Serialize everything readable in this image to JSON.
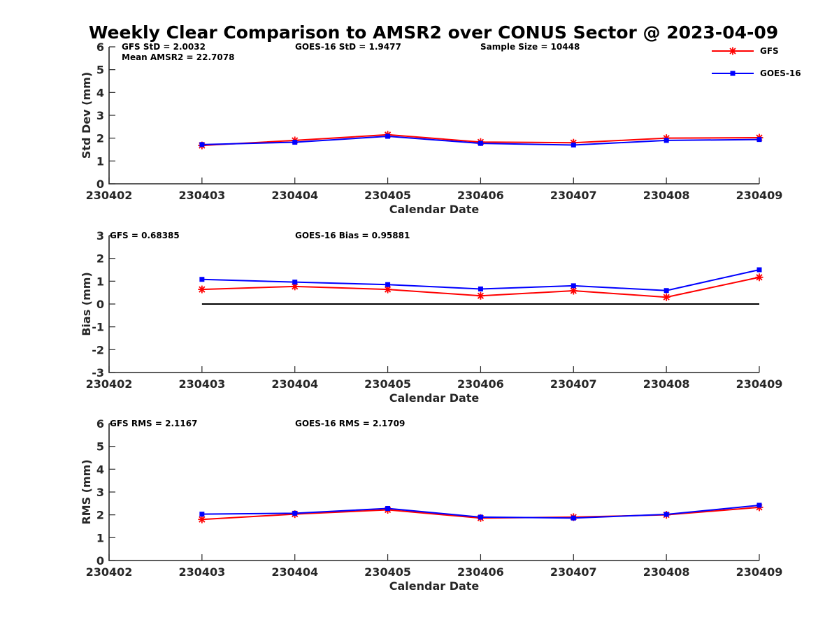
{
  "title": "Weekly Clear Comparison to AMSR2 over CONUS Sector @ 2023-04-09",
  "legend": {
    "position": "top-right",
    "items": [
      {
        "label": "GFS",
        "color": "#ff0000",
        "marker": "asterisk"
      },
      {
        "label": "GOES-16",
        "color": "#0000ff",
        "marker": "square"
      }
    ]
  },
  "chart_data": [
    {
      "type": "line",
      "ylabel": "Std Dev (mm)",
      "xlabel": "Calendar Date",
      "ylim": [
        0,
        6
      ],
      "yticks": [
        "0",
        "1",
        "2",
        "3",
        "4",
        "5",
        "6"
      ],
      "x": [
        "230402",
        "230403",
        "230404",
        "230405",
        "230406",
        "230407",
        "230408",
        "230409"
      ],
      "grid": false,
      "annotations": [
        {
          "text": "GFS StD = 2.0032",
          "row": 1,
          "col": 1
        },
        {
          "text": "GOES-16 StD = 1.9477",
          "row": 1,
          "col": 2
        },
        {
          "text": "Sample Size = 10448",
          "row": 1,
          "col": 3
        },
        {
          "text": "Mean AMSR2 = 22.7078",
          "row": 2,
          "col": 1
        }
      ],
      "series": [
        {
          "name": "GFS",
          "color": "#ff0000",
          "x": [
            "230403",
            "230404",
            "230405",
            "230406",
            "230407",
            "230408",
            "230409"
          ],
          "values": [
            1.68,
            1.9,
            2.15,
            1.83,
            1.8,
            2.0,
            2.02
          ]
        },
        {
          "name": "GOES-16",
          "color": "#0000ff",
          "x": [
            "230403",
            "230404",
            "230405",
            "230406",
            "230407",
            "230408",
            "230409"
          ],
          "values": [
            1.72,
            1.82,
            2.08,
            1.77,
            1.7,
            1.9,
            1.94
          ]
        }
      ],
      "reference_line": null
    },
    {
      "type": "line",
      "ylabel": "Bias (mm)",
      "xlabel": "Calendar Date",
      "ylim": [
        -3,
        3
      ],
      "yticks": [
        "-3",
        "-2",
        "-1",
        "0",
        "1",
        "2",
        "3"
      ],
      "x": [
        "230402",
        "230403",
        "230404",
        "230405",
        "230406",
        "230407",
        "230408",
        "230409"
      ],
      "grid": false,
      "annotations": [
        {
          "text": "GFS = 0.68385",
          "row": 1,
          "col": 0
        },
        {
          "text": "GOES-16 Bias  = 0.95881",
          "row": 1,
          "col": 2
        }
      ],
      "series": [
        {
          "name": "GFS",
          "color": "#ff0000",
          "x": [
            "230403",
            "230404",
            "230405",
            "230406",
            "230407",
            "230408",
            "230409"
          ],
          "values": [
            0.64,
            0.77,
            0.64,
            0.36,
            0.58,
            0.3,
            1.17
          ]
        },
        {
          "name": "GOES-16",
          "color": "#0000ff",
          "x": [
            "230403",
            "230404",
            "230405",
            "230406",
            "230407",
            "230408",
            "230409"
          ],
          "values": [
            1.08,
            0.96,
            0.85,
            0.66,
            0.8,
            0.59,
            1.5
          ]
        }
      ],
      "reference_line": {
        "y": 0,
        "from": "230403",
        "to": "230409",
        "color": "#000000"
      }
    },
    {
      "type": "line",
      "ylabel": "RMS (mm)",
      "xlabel": "Calendar Date",
      "ylim": [
        0,
        6
      ],
      "yticks": [
        "0",
        "1",
        "2",
        "3",
        "4",
        "5",
        "6"
      ],
      "x": [
        "230402",
        "230403",
        "230404",
        "230405",
        "230406",
        "230407",
        "230408",
        "230409"
      ],
      "grid": false,
      "annotations": [
        {
          "text": "GFS RMS = 2.1167",
          "row": 1,
          "col": 0
        },
        {
          "text": "GOES-16 RMS = 2.1709",
          "row": 1,
          "col": 2
        }
      ],
      "series": [
        {
          "name": "GFS",
          "color": "#ff0000",
          "x": [
            "230403",
            "230404",
            "230405",
            "230406",
            "230407",
            "230408",
            "230409"
          ],
          "values": [
            1.8,
            2.03,
            2.22,
            1.86,
            1.9,
            2.0,
            2.33
          ]
        },
        {
          "name": "GOES-16",
          "color": "#0000ff",
          "x": [
            "230403",
            "230404",
            "230405",
            "230406",
            "230407",
            "230408",
            "230409"
          ],
          "values": [
            2.03,
            2.07,
            2.28,
            1.9,
            1.86,
            2.02,
            2.42
          ]
        }
      ],
      "reference_line": null
    }
  ]
}
